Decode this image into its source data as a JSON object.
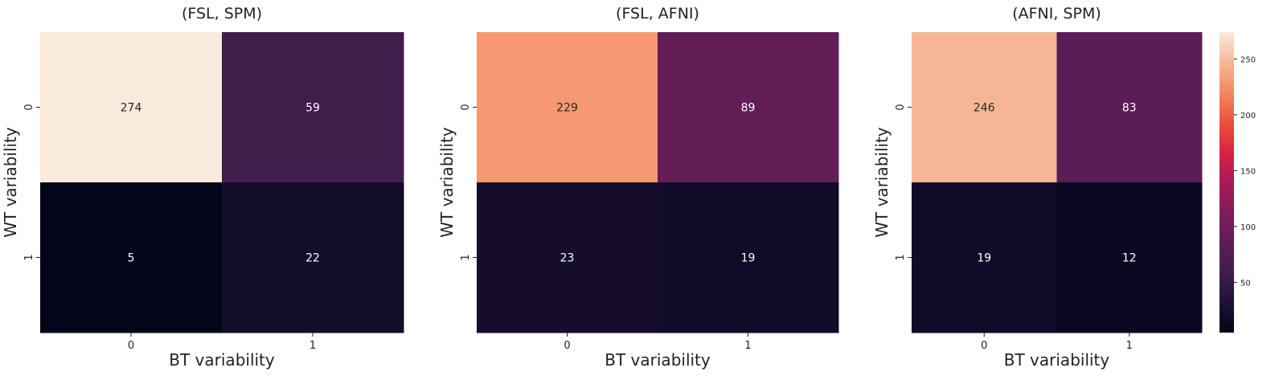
{
  "chart_data": [
    {
      "type": "heatmap",
      "title": "(FSL, SPM)",
      "xlabel": "BT variability",
      "ylabel": "WT variability",
      "x_categories": [
        "0",
        "1"
      ],
      "y_categories": [
        "0",
        "1"
      ],
      "values": [
        [
          274,
          59
        ],
        [
          5,
          22
        ]
      ]
    },
    {
      "type": "heatmap",
      "title": "(FSL, AFNI)",
      "xlabel": "BT variability",
      "ylabel": "WT variability",
      "x_categories": [
        "0",
        "1"
      ],
      "y_categories": [
        "0",
        "1"
      ],
      "values": [
        [
          229,
          89
        ],
        [
          23,
          19
        ]
      ]
    },
    {
      "type": "heatmap",
      "title": "(AFNI, SPM)",
      "xlabel": "BT variability",
      "ylabel": "WT variability",
      "x_categories": [
        "0",
        "1"
      ],
      "y_categories": [
        "0",
        "1"
      ],
      "values": [
        [
          246,
          83
        ],
        [
          19,
          12
        ]
      ]
    }
  ],
  "colorbar": {
    "colormap": "rocket",
    "vmin": 5,
    "vmax": 274,
    "ticks": [
      50,
      100,
      150,
      200,
      250
    ]
  },
  "colors": {
    "annotation_light": "#ffffff",
    "annotation_dark": "#262626",
    "axis_text": "#222222"
  }
}
